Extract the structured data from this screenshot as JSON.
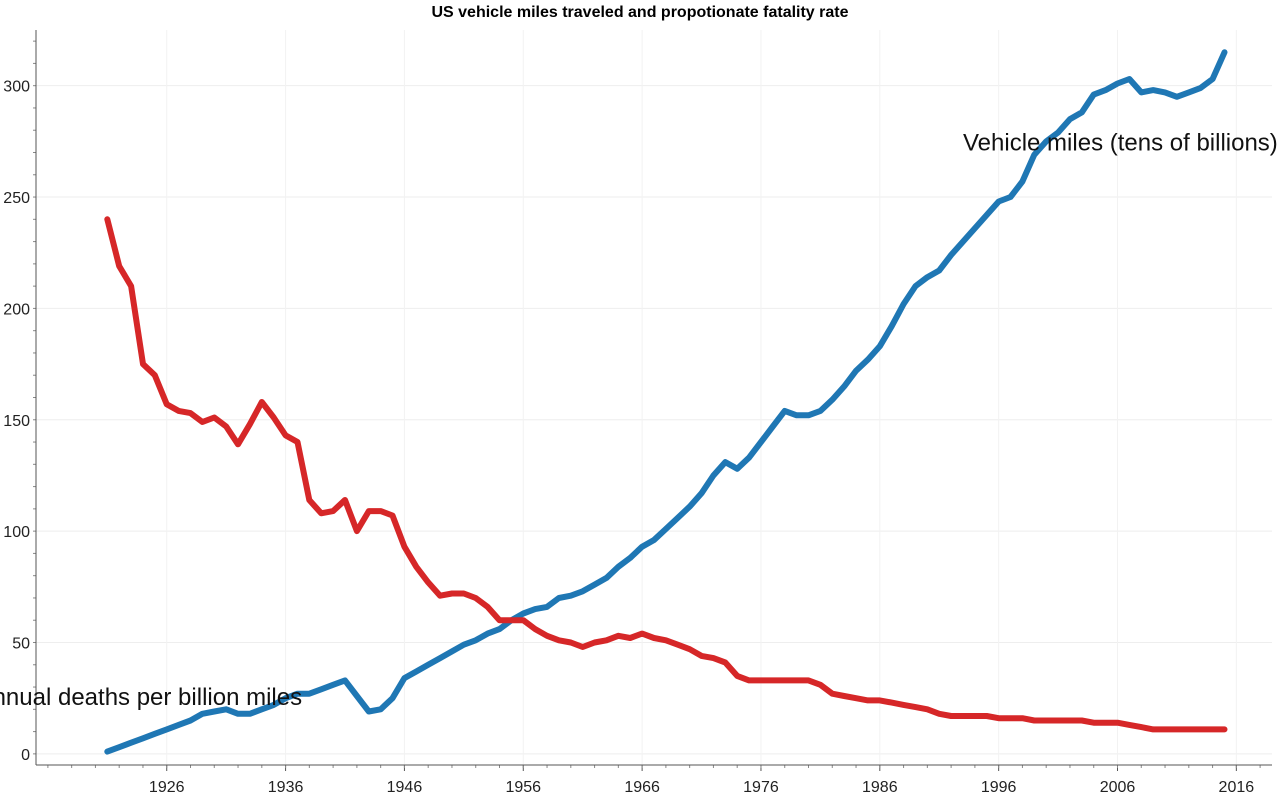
{
  "chart_data": {
    "type": "line",
    "title": "US vehicle miles traveled and propotionate fatality rate",
    "xlabel": "",
    "ylabel": "",
    "xlim": [
      1915,
      2019
    ],
    "ylim": [
      -5,
      325
    ],
    "x_ticks": [
      1926,
      1936,
      1946,
      1956,
      1966,
      1976,
      1986,
      1996,
      2006,
      2016
    ],
    "y_ticks": [
      0,
      50,
      100,
      150,
      200,
      250,
      300
    ],
    "grid": true,
    "legend": "none",
    "series": [
      {
        "name": "Vehicle miles (tens of billions)",
        "color": "#1f77b4",
        "points": [
          [
            1921,
            1
          ],
          [
            1922,
            3
          ],
          [
            1923,
            5
          ],
          [
            1924,
            7
          ],
          [
            1925,
            9
          ],
          [
            1926,
            11
          ],
          [
            1927,
            13
          ],
          [
            1928,
            15
          ],
          [
            1929,
            18
          ],
          [
            1930,
            19
          ],
          [
            1931,
            20
          ],
          [
            1932,
            18
          ],
          [
            1933,
            18
          ],
          [
            1934,
            20
          ],
          [
            1935,
            22
          ],
          [
            1936,
            25
          ],
          [
            1937,
            27
          ],
          [
            1938,
            27
          ],
          [
            1939,
            29
          ],
          [
            1940,
            31
          ],
          [
            1941,
            33
          ],
          [
            1942,
            26
          ],
          [
            1943,
            19
          ],
          [
            1944,
            20
          ],
          [
            1945,
            25
          ],
          [
            1946,
            34
          ],
          [
            1947,
            37
          ],
          [
            1948,
            40
          ],
          [
            1949,
            43
          ],
          [
            1950,
            46
          ],
          [
            1951,
            49
          ],
          [
            1952,
            51
          ],
          [
            1953,
            54
          ],
          [
            1954,
            56
          ],
          [
            1955,
            60
          ],
          [
            1956,
            63
          ],
          [
            1957,
            65
          ],
          [
            1958,
            66
          ],
          [
            1959,
            70
          ],
          [
            1960,
            71
          ],
          [
            1961,
            73
          ],
          [
            1962,
            76
          ],
          [
            1963,
            79
          ],
          [
            1964,
            84
          ],
          [
            1965,
            88
          ],
          [
            1966,
            93
          ],
          [
            1967,
            96
          ],
          [
            1968,
            101
          ],
          [
            1969,
            106
          ],
          [
            1970,
            111
          ],
          [
            1971,
            117
          ],
          [
            1972,
            125
          ],
          [
            1973,
            131
          ],
          [
            1974,
            128
          ],
          [
            1975,
            133
          ],
          [
            1976,
            140
          ],
          [
            1977,
            147
          ],
          [
            1978,
            154
          ],
          [
            1979,
            152
          ],
          [
            1980,
            152
          ],
          [
            1981,
            154
          ],
          [
            1982,
            159
          ],
          [
            1983,
            165
          ],
          [
            1984,
            172
          ],
          [
            1985,
            177
          ],
          [
            1986,
            183
          ],
          [
            1987,
            192
          ],
          [
            1988,
            202
          ],
          [
            1989,
            210
          ],
          [
            1990,
            214
          ],
          [
            1991,
            217
          ],
          [
            1992,
            224
          ],
          [
            1993,
            230
          ],
          [
            1994,
            236
          ],
          [
            1995,
            242
          ],
          [
            1996,
            248
          ],
          [
            1997,
            250
          ],
          [
            1998,
            257
          ],
          [
            1999,
            269
          ],
          [
            2000,
            275
          ],
          [
            2001,
            279
          ],
          [
            2002,
            285
          ],
          [
            2003,
            288
          ],
          [
            2004,
            296
          ],
          [
            2005,
            298
          ],
          [
            2006,
            301
          ],
          [
            2007,
            303
          ],
          [
            2008,
            297
          ],
          [
            2009,
            298
          ],
          [
            2010,
            297
          ],
          [
            2011,
            295
          ],
          [
            2012,
            297
          ],
          [
            2013,
            299
          ],
          [
            2014,
            303
          ],
          [
            2015,
            315
          ]
        ]
      },
      {
        "name": "Annual deaths per billion miles",
        "color": "#d62728",
        "points": [
          [
            1921,
            240
          ],
          [
            1922,
            219
          ],
          [
            1923,
            210
          ],
          [
            1924,
            175
          ],
          [
            1925,
            170
          ],
          [
            1926,
            157
          ],
          [
            1927,
            154
          ],
          [
            1928,
            153
          ],
          [
            1929,
            149
          ],
          [
            1930,
            151
          ],
          [
            1931,
            147
          ],
          [
            1932,
            139
          ],
          [
            1933,
            148
          ],
          [
            1934,
            158
          ],
          [
            1935,
            151
          ],
          [
            1936,
            143
          ],
          [
            1937,
            140
          ],
          [
            1938,
            114
          ],
          [
            1939,
            108
          ],
          [
            1940,
            109
          ],
          [
            1941,
            114
          ],
          [
            1942,
            100
          ],
          [
            1943,
            109
          ],
          [
            1944,
            109
          ],
          [
            1945,
            107
          ],
          [
            1946,
            93
          ],
          [
            1947,
            84
          ],
          [
            1948,
            77
          ],
          [
            1949,
            71
          ],
          [
            1950,
            72
          ],
          [
            1951,
            72
          ],
          [
            1952,
            70
          ],
          [
            1953,
            66
          ],
          [
            1954,
            60
          ],
          [
            1955,
            60
          ],
          [
            1956,
            60
          ],
          [
            1957,
            56
          ],
          [
            1958,
            53
          ],
          [
            1959,
            51
          ],
          [
            1960,
            50
          ],
          [
            1961,
            48
          ],
          [
            1962,
            50
          ],
          [
            1963,
            51
          ],
          [
            1964,
            53
          ],
          [
            1965,
            52
          ],
          [
            1966,
            54
          ],
          [
            1967,
            52
          ],
          [
            1968,
            51
          ],
          [
            1969,
            49
          ],
          [
            1970,
            47
          ],
          [
            1971,
            44
          ],
          [
            1972,
            43
          ],
          [
            1973,
            41
          ],
          [
            1974,
            35
          ],
          [
            1975,
            33
          ],
          [
            1976,
            33
          ],
          [
            1977,
            33
          ],
          [
            1978,
            33
          ],
          [
            1979,
            33
          ],
          [
            1980,
            33
          ],
          [
            1981,
            31
          ],
          [
            1982,
            27
          ],
          [
            1983,
            26
          ],
          [
            1984,
            25
          ],
          [
            1985,
            24
          ],
          [
            1986,
            24
          ],
          [
            1987,
            23
          ],
          [
            1988,
            22
          ],
          [
            1989,
            21
          ],
          [
            1990,
            20
          ],
          [
            1991,
            18
          ],
          [
            1992,
            17
          ],
          [
            1993,
            17
          ],
          [
            1994,
            17
          ],
          [
            1995,
            17
          ],
          [
            1996,
            16
          ],
          [
            1997,
            16
          ],
          [
            1998,
            16
          ],
          [
            1999,
            15
          ],
          [
            2000,
            15
          ],
          [
            2001,
            15
          ],
          [
            2002,
            15
          ],
          [
            2003,
            15
          ],
          [
            2004,
            14
          ],
          [
            2005,
            14
          ],
          [
            2006,
            14
          ],
          [
            2007,
            13
          ],
          [
            2008,
            12
          ],
          [
            2009,
            11
          ],
          [
            2010,
            11
          ],
          [
            2011,
            11
          ],
          [
            2012,
            11
          ],
          [
            2013,
            11
          ],
          [
            2014,
            11
          ],
          [
            2015,
            11
          ]
        ]
      }
    ],
    "annotations": [
      {
        "text": "Vehicle miles (tens of billions)",
        "x": 1993,
        "y": 271
      },
      {
        "text": "Annual deaths per billion miles",
        "x": 1910,
        "y": 22
      }
    ]
  }
}
